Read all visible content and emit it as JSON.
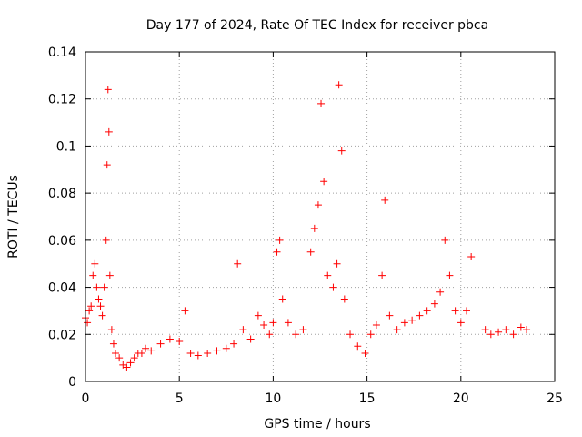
{
  "chart_data": {
    "type": "scatter",
    "title": "Day 177 of 2024, Rate Of TEC Index for receiver pbca",
    "xlabel": "GPS time / hours",
    "ylabel": "ROTI / TECUs",
    "xlim": [
      0,
      25
    ],
    "ylim": [
      0,
      0.14
    ],
    "x_ticks": [
      0,
      5,
      10,
      15,
      20,
      25
    ],
    "x_tick_labels": [
      "0",
      "5",
      "10",
      "15",
      "20",
      "25"
    ],
    "y_ticks": [
      0,
      0.02,
      0.04,
      0.06,
      0.08,
      0.1,
      0.12,
      0.14
    ],
    "y_tick_labels": [
      "0",
      "0.02",
      "0.04",
      "0.06",
      "0.08",
      "0.1",
      "0.12",
      "0.14"
    ],
    "grid": true,
    "marker": "+",
    "marker_color": "#ff0000",
    "series": [
      {
        "name": "ROTI",
        "x": [
          0.0,
          0.1,
          0.2,
          0.3,
          0.4,
          0.5,
          0.6,
          0.7,
          0.8,
          0.9,
          1.0,
          1.1,
          1.15,
          1.2,
          1.25,
          1.3,
          1.4,
          1.5,
          1.6,
          1.8,
          2.0,
          2.2,
          2.4,
          2.6,
          2.8,
          3.0,
          3.2,
          3.5,
          4.0,
          4.5,
          5.0,
          5.3,
          5.6,
          6.0,
          6.5,
          7.0,
          7.5,
          7.9,
          8.1,
          8.4,
          8.8,
          9.2,
          9.5,
          9.8,
          10.0,
          10.2,
          10.35,
          10.5,
          10.8,
          11.2,
          11.6,
          12.0,
          12.2,
          12.4,
          12.55,
          12.7,
          12.9,
          13.2,
          13.4,
          13.5,
          13.65,
          13.8,
          14.1,
          14.5,
          14.9,
          15.2,
          15.5,
          15.8,
          15.95,
          16.2,
          16.6,
          17.0,
          17.4,
          17.8,
          18.2,
          18.6,
          18.9,
          19.15,
          19.4,
          19.7,
          20.0,
          20.3,
          20.55,
          21.3,
          21.6,
          22.0,
          22.4,
          22.8,
          23.2,
          23.5
        ],
        "y": [
          0.027,
          0.025,
          0.03,
          0.032,
          0.045,
          0.05,
          0.04,
          0.035,
          0.032,
          0.028,
          0.04,
          0.06,
          0.092,
          0.124,
          0.106,
          0.045,
          0.022,
          0.016,
          0.012,
          0.01,
          0.007,
          0.006,
          0.008,
          0.01,
          0.012,
          0.012,
          0.014,
          0.013,
          0.016,
          0.018,
          0.017,
          0.03,
          0.012,
          0.011,
          0.012,
          0.013,
          0.014,
          0.016,
          0.05,
          0.022,
          0.018,
          0.028,
          0.024,
          0.02,
          0.025,
          0.055,
          0.06,
          0.035,
          0.025,
          0.02,
          0.022,
          0.055,
          0.065,
          0.075,
          0.118,
          0.085,
          0.045,
          0.04,
          0.05,
          0.126,
          0.098,
          0.035,
          0.02,
          0.015,
          0.012,
          0.02,
          0.024,
          0.045,
          0.077,
          0.028,
          0.022,
          0.025,
          0.026,
          0.028,
          0.03,
          0.033,
          0.038,
          0.06,
          0.045,
          0.03,
          0.025,
          0.03,
          0.053,
          0.022,
          0.02,
          0.021,
          0.022,
          0.02,
          0.023,
          0.022
        ]
      }
    ]
  }
}
